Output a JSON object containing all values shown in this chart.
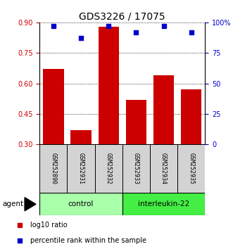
{
  "title": "GDS3226 / 17075",
  "categories": [
    "GSM252890",
    "GSM252931",
    "GSM252932",
    "GSM252933",
    "GSM252934",
    "GSM252935"
  ],
  "bar_values": [
    0.67,
    0.37,
    0.88,
    0.52,
    0.64,
    0.57
  ],
  "percentile_values": [
    97,
    87,
    97,
    92,
    97,
    92
  ],
  "ylim_left": [
    0.3,
    0.9
  ],
  "ylim_right": [
    0,
    100
  ],
  "yticks_left": [
    0.3,
    0.45,
    0.6,
    0.75,
    0.9
  ],
  "yticks_right": [
    0,
    25,
    50,
    75,
    100
  ],
  "ytick_labels_right": [
    "0",
    "25",
    "50",
    "75",
    "100%"
  ],
  "bar_color": "#cc0000",
  "point_color": "#0000cc",
  "bg_color": "#ffffff",
  "groups": [
    {
      "label": "control",
      "color": "#aaffaa",
      "count": 3
    },
    {
      "label": "interleukin-22",
      "color": "#44ee44",
      "count": 3
    }
  ],
  "agent_label": "agent",
  "legend_bar_label": "log10 ratio",
  "legend_point_label": "percentile rank within the sample",
  "figsize": [
    3.31,
    3.54
  ],
  "dpi": 100
}
